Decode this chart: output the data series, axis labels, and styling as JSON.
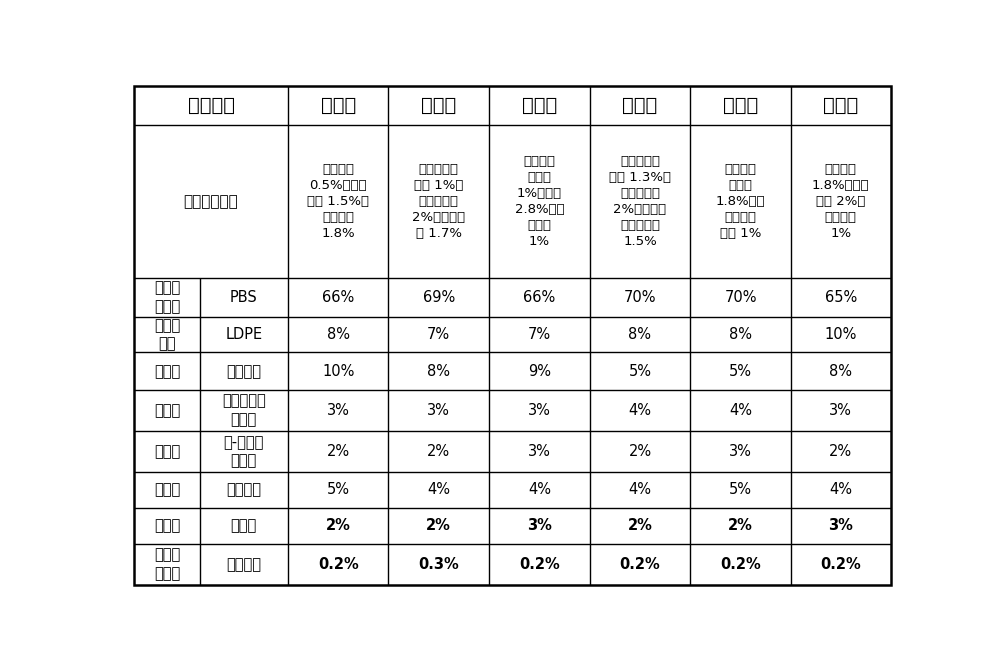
{
  "header_cols": [
    "原料名称",
    "配比一",
    "配比二",
    "配比三",
    "配比四",
    "配比五",
    "配比六"
  ],
  "rows": [
    {
      "col1": "气相防锈助剂",
      "col2": "",
      "values": [
        "亚硝酸钠\n0.5%、乌洛\n托品 1.5%、\n苯甲酸钠\n1.8%",
        "亚硝酸二环\n己胺 1%、\n苯骈三氯唑\n2%、乌洛托\n品 1.7%",
        "苯甲酸单\n乙醇胺\n1%、尿素\n2.8%、亚\n硝酸钠\n1%",
        "亚硝基二环\n己胺 1.3%、\n邻硝基酚钠\n2%、邻硝基\n酚二环己胺\n1.5%",
        "硬脂酸乙\n醇酰胺\n1.8%、烷\n基苯骈三\n氮唑 1%",
        "单乙醇胺\n1.8%、苯甲\n酸钠 2%、\n乌洛托品\n1%"
      ]
    },
    {
      "col1": "生物降\n解材料",
      "col2": "PBS",
      "values": [
        "66%",
        "69%",
        "66%",
        "70%",
        "70%",
        "65%"
      ]
    },
    {
      "col1": "聚烯烃\n载体",
      "col2": "LDPE",
      "values": [
        "8%",
        "7%",
        "7%",
        "8%",
        "8%",
        "10%"
      ]
    },
    {
      "col1": "改性剂",
      "col2": "碳酸钙粉",
      "values": [
        "10%",
        "8%",
        "9%",
        "5%",
        "5%",
        "8%"
      ]
    },
    {
      "col1": "增塑剂",
      "col2": "邻苯二甲酸\n二辛酯",
      "values": [
        "3%",
        "3%",
        "3%",
        "4%",
        "4%",
        "3%"
      ]
    },
    {
      "col1": "偶联剂",
      "col2": "钛-铝复合\n偶联剂",
      "values": [
        "2%",
        "2%",
        "3%",
        "2%",
        "3%",
        "2%"
      ]
    },
    {
      "col1": "分散剂",
      "col2": "聚乙烯蜡",
      "values": [
        "5%",
        "4%",
        "4%",
        "4%",
        "5%",
        "4%"
      ]
    },
    {
      "col1": "润滑剂",
      "col2": "硬脂酸",
      "values": [
        "2%",
        "2%",
        "3%",
        "2%",
        "2%",
        "3%"
      ]
    },
    {
      "col1": "其他加\n工助剂",
      "col2": "芥酸酰胺",
      "values": [
        "0.2%",
        "0.3%",
        "0.2%",
        "0.2%",
        "0.2%",
        "0.2%"
      ]
    }
  ],
  "col_props": [
    8.5,
    11.5,
    13.1,
    13.1,
    13.1,
    13.1,
    13.1,
    13.0
  ],
  "row_height_props": [
    0.52,
    2.05,
    0.52,
    0.48,
    0.5,
    0.55,
    0.55,
    0.48,
    0.48,
    0.55
  ],
  "background_color": "#ffffff",
  "border_color": "#000000",
  "font_size_header": 14,
  "font_size_data": 10.5,
  "font_size_gas": 9.5,
  "bold_last_two": true
}
